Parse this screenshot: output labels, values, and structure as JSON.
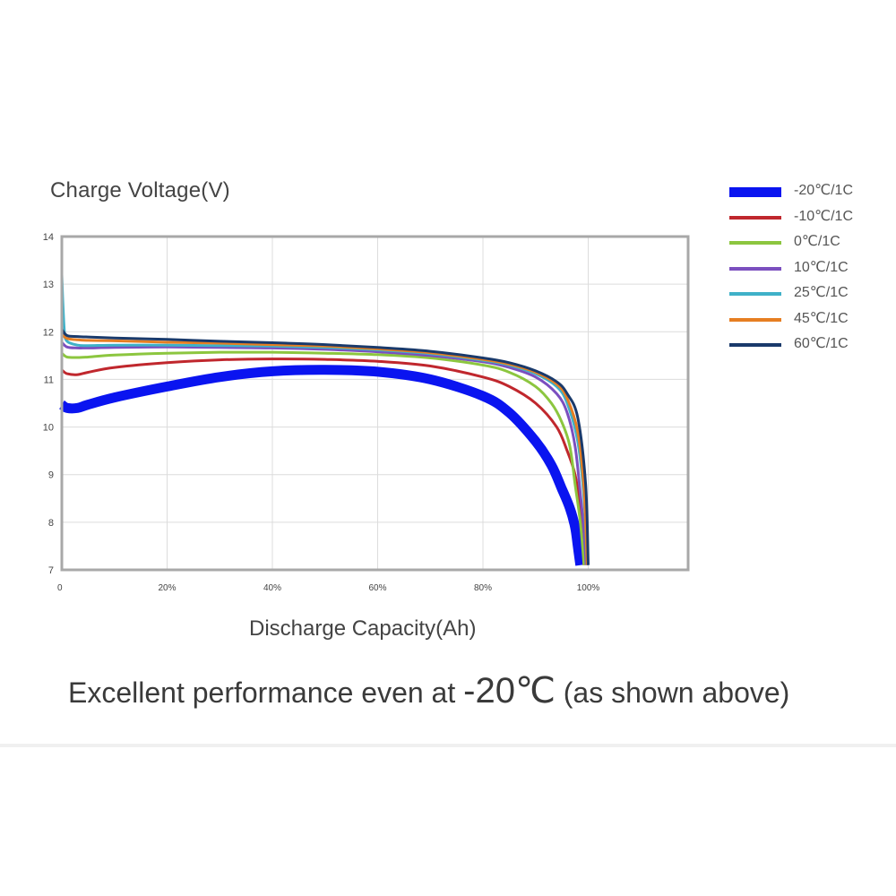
{
  "chart_data": {
    "type": "line",
    "title": "",
    "ylabel": "Charge Voltage(V)",
    "xlabel": "Discharge Capacity(Ah)",
    "ylim": [
      7,
      14
    ],
    "xlim": [
      0,
      120
    ],
    "yticks": [
      "7",
      "8",
      "9",
      "10",
      "11",
      "12",
      "13",
      "14"
    ],
    "xticks": [
      "0",
      "20%",
      "40%",
      "60%",
      "80%",
      "100%"
    ],
    "grid": true,
    "legend_position": "right",
    "series": [
      {
        "name": "-20℃/1C",
        "color": "#0a14f0",
        "width": 11,
        "x": [
          0,
          1,
          3,
          5,
          10,
          20,
          30,
          40,
          50,
          60,
          70,
          80,
          85,
          90,
          93,
          95,
          96.5,
          97.5,
          98,
          98.5
        ],
        "y": [
          10.47,
          10.4,
          10.4,
          10.47,
          10.62,
          10.85,
          11.05,
          11.17,
          11.2,
          11.16,
          11.0,
          10.65,
          10.3,
          9.7,
          9.2,
          8.7,
          8.3,
          7.9,
          7.5,
          7.1
        ]
      },
      {
        "name": "-10℃/1C",
        "color": "#c0272d",
        "width": 3,
        "x": [
          0,
          1,
          3,
          5,
          10,
          20,
          30,
          40,
          50,
          60,
          70,
          80,
          85,
          90,
          94,
          96,
          97.5,
          98.5,
          99,
          99.2
        ],
        "y": [
          11.2,
          11.12,
          11.1,
          11.15,
          11.25,
          11.35,
          11.41,
          11.43,
          11.42,
          11.38,
          11.28,
          11.05,
          10.85,
          10.5,
          10.0,
          9.5,
          9.0,
          8.3,
          7.7,
          7.1
        ]
      },
      {
        "name": "0℃/1C",
        "color": "#8cc63f",
        "width": 3,
        "x": [
          0,
          1,
          3,
          5,
          10,
          20,
          30,
          40,
          50,
          60,
          70,
          80,
          85,
          90,
          93,
          95,
          96.5,
          97.5,
          98.5,
          99.2
        ],
        "y": [
          11.55,
          11.47,
          11.46,
          11.47,
          11.51,
          11.55,
          11.57,
          11.57,
          11.55,
          11.52,
          11.45,
          11.3,
          11.15,
          10.85,
          10.5,
          10.1,
          9.6,
          8.8,
          8.0,
          7.1
        ]
      },
      {
        "name": "10℃/1C",
        "color": "#7b4fbf",
        "width": 3,
        "x": [
          0,
          1,
          3,
          5,
          10,
          20,
          30,
          40,
          50,
          60,
          70,
          80,
          85,
          90,
          94,
          96,
          97.5,
          98.5,
          99.2,
          99.6
        ],
        "y": [
          11.78,
          11.68,
          11.66,
          11.66,
          11.67,
          11.68,
          11.67,
          11.66,
          11.63,
          11.58,
          11.5,
          11.37,
          11.25,
          11.05,
          10.7,
          10.3,
          9.6,
          8.6,
          7.8,
          7.1
        ]
      },
      {
        "name": "25℃/1C",
        "color": "#3fb1c8",
        "width": 3,
        "x": [
          0,
          0.2,
          0.5,
          1,
          3,
          5,
          10,
          20,
          30,
          40,
          50,
          60,
          70,
          80,
          85,
          90,
          94,
          96,
          98,
          99.2,
          99.8
        ],
        "y": [
          13.2,
          12.6,
          12.0,
          11.8,
          11.72,
          11.71,
          11.72,
          11.72,
          11.71,
          11.7,
          11.67,
          11.62,
          11.54,
          11.4,
          11.3,
          11.12,
          10.85,
          10.5,
          9.7,
          8.5,
          7.1
        ]
      },
      {
        "name": "45℃/1C",
        "color": "#e67e22",
        "width": 3,
        "x": [
          0,
          1,
          3,
          5,
          10,
          20,
          30,
          40,
          50,
          60,
          70,
          80,
          85,
          90,
          94,
          96,
          98,
          99.2,
          99.8
        ],
        "y": [
          11.95,
          11.86,
          11.83,
          11.82,
          11.81,
          11.78,
          11.76,
          11.73,
          11.7,
          11.64,
          11.56,
          11.42,
          11.32,
          11.15,
          10.9,
          10.6,
          9.9,
          8.7,
          7.1
        ]
      },
      {
        "name": "60℃/1C",
        "color": "#1a3a6b",
        "width": 3,
        "x": [
          0,
          1,
          3,
          5,
          10,
          20,
          30,
          40,
          50,
          60,
          70,
          80,
          85,
          90,
          94,
          96,
          98,
          99.5,
          100
        ],
        "y": [
          12.05,
          11.92,
          11.9,
          11.89,
          11.87,
          11.84,
          11.8,
          11.77,
          11.73,
          11.67,
          11.59,
          11.45,
          11.35,
          11.18,
          10.95,
          10.7,
          10.2,
          8.8,
          7.1
        ]
      }
    ]
  },
  "caption": {
    "main": "Excellent performance even at ",
    "emphasis": "-20℃",
    "suffix": " (as shown above)"
  }
}
